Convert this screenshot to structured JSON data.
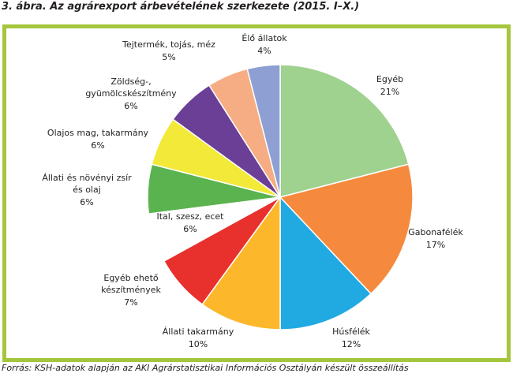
{
  "title": "3. ábra. Az agrárexport árbevételének szerkezete (2015. I–X.)",
  "source": "Forrás: KSH-adatok alapján az AKI Agrárstatisztikai Információs Osztályán készült összeállítás",
  "colors": {
    "frame": "#a4c63c"
  },
  "chart_data": {
    "type": "pie",
    "unit": "%",
    "slices": [
      {
        "label": "Egyéb",
        "value": 21,
        "color": "#9fd18f"
      },
      {
        "label": "Gabonafélék",
        "value": 17,
        "color": "#f58a3f"
      },
      {
        "label": "Húsfélék",
        "value": 12,
        "color": "#21aae2"
      },
      {
        "label": "Állati takarmány",
        "value": 10,
        "color": "#fcb72a"
      },
      {
        "label": "Egyéb ehető készítmények",
        "value": 7,
        "color": "#e8302d"
      },
      {
        "label": "Ital, szesz, ecet",
        "value": 6,
        "color": "#ffffff"
      },
      {
        "label": "Állati és növényi zsír és olaj",
        "value": 6,
        "color": "#5ab34e"
      },
      {
        "label": "Olajos mag, takarmány",
        "value": 6,
        "color": "#f2e938"
      },
      {
        "label": "Zöldség-, gyümölcskészítmény",
        "value": 6,
        "color": "#6c3f97"
      },
      {
        "label": "Tejtermék, tojás, méz",
        "value": 5,
        "color": "#f6ad84"
      },
      {
        "label": "Élő állatok",
        "value": 4,
        "color": "#8e9fd3"
      }
    ]
  }
}
